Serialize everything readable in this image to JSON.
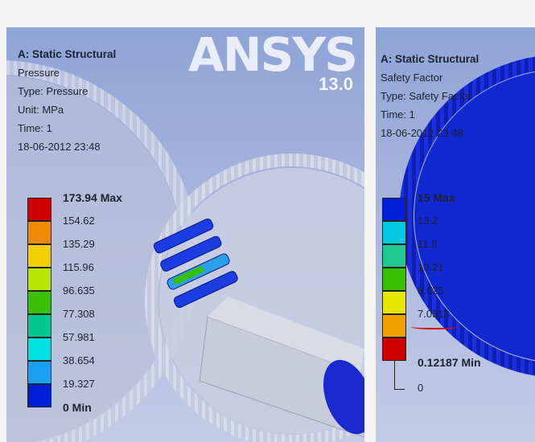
{
  "left": {
    "info": {
      "title": "A: Static Structural",
      "lines": [
        "Pressure",
        "Type: Pressure",
        "Unit: MPa",
        "Time: 1",
        "18-06-2012 23:48"
      ]
    },
    "brand": {
      "logo": "ANSYS",
      "version": "13.0"
    },
    "legend": {
      "max_label": "173.94 Max",
      "values": [
        "154.62",
        "135.29",
        "115.96",
        "96.635",
        "77.308",
        "57.981",
        "38.654",
        "19.327"
      ],
      "min_label": "0 Min",
      "colors": [
        "#d00000",
        "#f08a00",
        "#f2d000",
        "#b8e600",
        "#39c000",
        "#00c890",
        "#00e0e0",
        "#1aa0f0",
        "#0020d8"
      ]
    }
  },
  "right": {
    "info": {
      "title": "A: Static Structural",
      "lines": [
        "Safety Factor",
        "Type: Safety Factor",
        "Time: 1",
        "18-06-2012 23:48"
      ]
    },
    "legend": {
      "max_label": "15 Max",
      "values": [
        "13.2",
        "11.8",
        "10.21",
        "8.625",
        "7.0313"
      ],
      "min_label": "0.12187 Min",
      "zero_label": "0",
      "colors": [
        "#0020d8",
        "#00c8e0",
        "#20c890",
        "#38c000",
        "#e6e600",
        "#f0a000",
        "#d00000"
      ]
    }
  }
}
